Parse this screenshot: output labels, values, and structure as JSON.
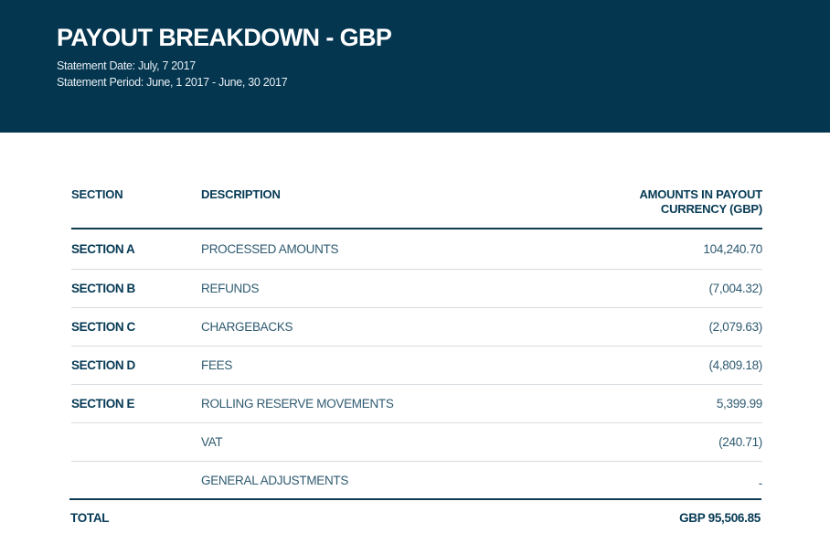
{
  "header": {
    "title": "PAYOUT BREAKDOWN - GBP",
    "statement_date": "Statement Date: July, 7 2017",
    "statement_period": "Statement Period: June, 1 2017 - June, 30 2017"
  },
  "table": {
    "columns": {
      "section": "SECTION",
      "description": "DESCRIPTION",
      "amount_line1": "AMOUNTS IN PAYOUT",
      "amount_line2": "CURRENCY (GBP)"
    },
    "rows": [
      {
        "section": "SECTION A",
        "description": "PROCESSED AMOUNTS",
        "amount": "104,240.70"
      },
      {
        "section": "SECTION B",
        "description": "REFUNDS",
        "amount": "(7,004.32)"
      },
      {
        "section": "SECTION C",
        "description": "CHARGEBACKS",
        "amount": "(2,079.63)"
      },
      {
        "section": "SECTION D",
        "description": "FEES",
        "amount": "(4,809.18)"
      },
      {
        "section": "SECTION E",
        "description": "ROLLING RESERVE MOVEMENTS",
        "amount": "5,399.99"
      },
      {
        "section": "",
        "description": "VAT",
        "amount": "(240.71)"
      },
      {
        "section": "",
        "description": "GENERAL ADJUSTMENTS",
        "amount": "-"
      }
    ],
    "total": {
      "label": "TOTAL",
      "value": "GBP 95,506.85"
    }
  },
  "colors": {
    "header_bg": "#043650",
    "text_primary": "#063a55",
    "text_secondary": "#2e5a70"
  }
}
